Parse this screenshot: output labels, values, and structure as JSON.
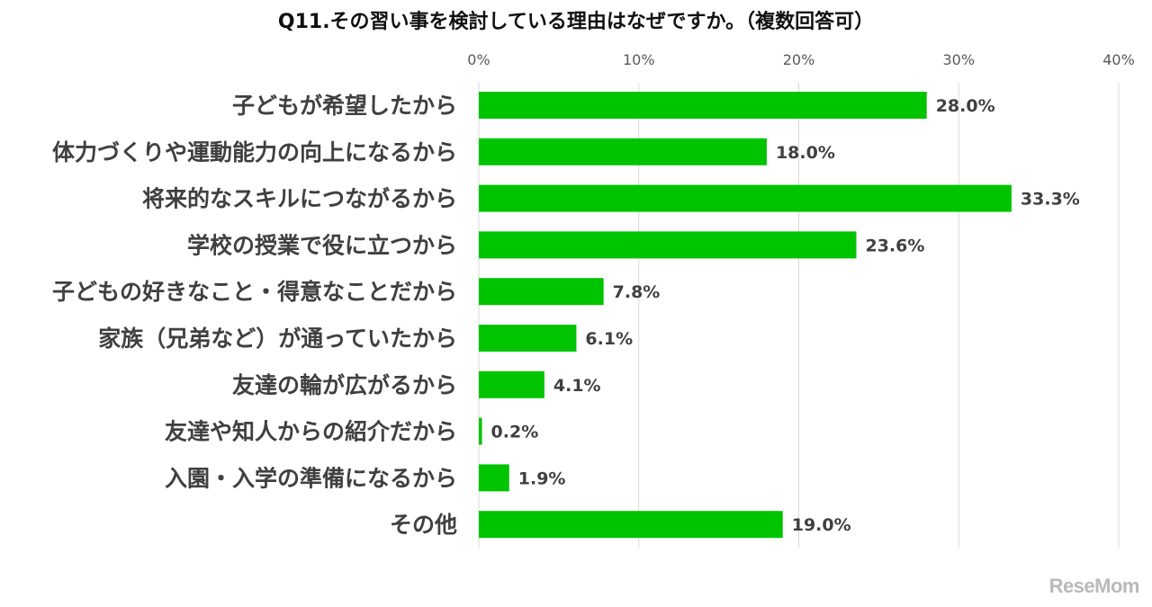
{
  "chart_data": {
    "type": "bar",
    "orientation": "horizontal",
    "title": "Q11.その習い事を検討している理由はなぜですか。（複数回答可）",
    "categories": [
      "子どもが希望したから",
      "体力づくりや運動能力の向上になるから",
      "将来的なスキルにつながるから",
      "学校の授業で役に立つから",
      "子どもの好きなこと・得意なことだから",
      "家族（兄弟など）が通っていたから",
      "友達の輪が広がるから",
      "友達や知人からの紹介だから",
      "入園・入学の準備になるから",
      "その他"
    ],
    "values": [
      28.0,
      18.0,
      33.3,
      23.6,
      7.8,
      6.1,
      4.1,
      0.2,
      1.9,
      19.0
    ],
    "value_labels": [
      "28.0%",
      "18.0%",
      "33.3%",
      "23.6%",
      "7.8%",
      "6.1%",
      "4.1%",
      "0.2%",
      "1.9%",
      "19.0%"
    ],
    "x_ticks": [
      "0%",
      "10%",
      "20%",
      "30%",
      "40%"
    ],
    "xlim": [
      0,
      40
    ],
    "grid": true,
    "axis_position": "top",
    "bar_color": "#00c400"
  },
  "watermark": {
    "text": "ReseMom"
  }
}
